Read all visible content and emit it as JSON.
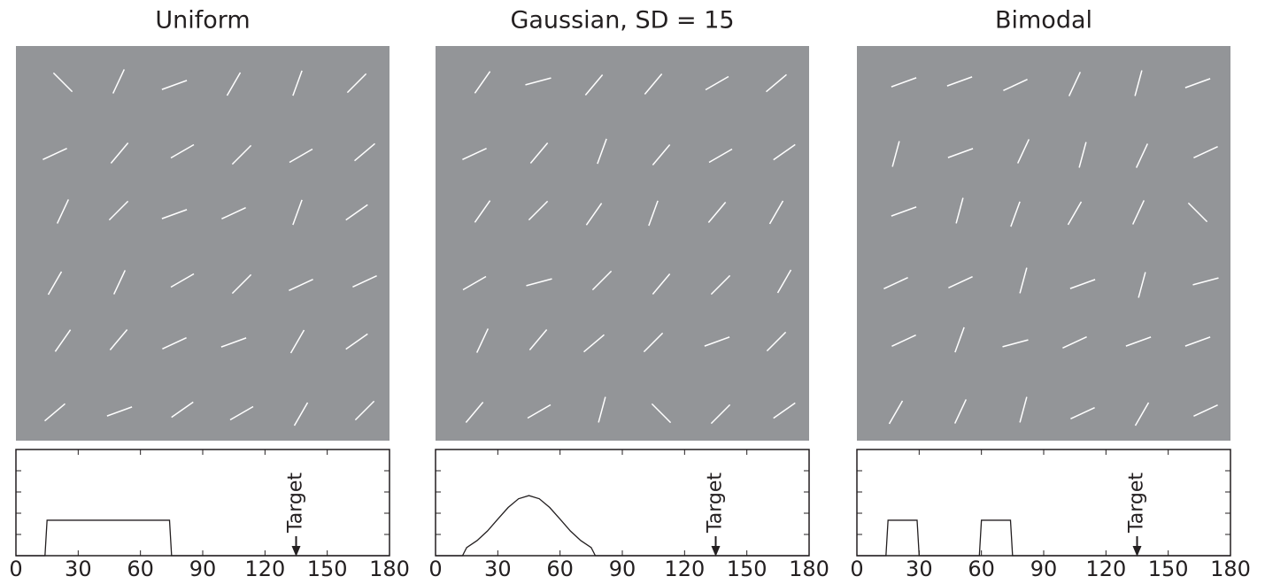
{
  "chart_data": [
    {
      "type": "line",
      "title": "Uniform",
      "background": "#939598",
      "stimulus_color": "#ffffff",
      "color": "#231f20",
      "stimulus_orientations": [
        135,
        65,
        20,
        60,
        70,
        45,
        25,
        50,
        30,
        45,
        30,
        40,
        65,
        45,
        20,
        25,
        70,
        35,
        60,
        65,
        30,
        45,
        25,
        25,
        55,
        50,
        25,
        20,
        60,
        35,
        40,
        20,
        35,
        30,
        60,
        45
      ],
      "x": [
        0,
        14,
        15,
        74,
        75,
        180
      ],
      "values": [
        0,
        0,
        1.67,
        1.67,
        0,
        0
      ],
      "xlim": [
        0,
        180
      ],
      "xticks": [
        0,
        30,
        60,
        90,
        120,
        150,
        180
      ],
      "ylim": [
        0,
        5
      ],
      "yticks": [
        1,
        2,
        3,
        4
      ],
      "annotation": {
        "text": "Target",
        "x": 135
      }
    },
    {
      "type": "line",
      "title": "Gaussian, SD = 15",
      "background": "#939598",
      "stimulus_color": "#ffffff",
      "color": "#231f20",
      "stimulus_orientations": [
        55,
        15,
        50,
        50,
        30,
        40,
        25,
        50,
        70,
        50,
        30,
        35,
        55,
        45,
        55,
        70,
        50,
        60,
        30,
        15,
        45,
        50,
        45,
        60,
        65,
        50,
        40,
        45,
        20,
        45,
        50,
        30,
        75,
        135,
        45,
        35
      ],
      "x": [
        0,
        13,
        15,
        20,
        25,
        30,
        35,
        40,
        45,
        50,
        55,
        60,
        65,
        70,
        75,
        77,
        180
      ],
      "values": [
        0,
        0,
        0.38,
        0.71,
        1.16,
        1.72,
        2.27,
        2.68,
        2.83,
        2.68,
        2.27,
        1.72,
        1.16,
        0.71,
        0.38,
        0,
        0
      ],
      "xlim": [
        0,
        180
      ],
      "xticks": [
        0,
        30,
        60,
        90,
        120,
        150,
        180
      ],
      "ylim": [
        0,
        5
      ],
      "yticks": [
        1,
        2,
        3,
        4
      ],
      "annotation": {
        "text": "Target",
        "x": 135
      }
    },
    {
      "type": "line",
      "title": "Bimodal",
      "background": "#939598",
      "stimulus_color": "#ffffff",
      "color": "#231f20",
      "stimulus_orientations": [
        20,
        20,
        25,
        65,
        75,
        20,
        75,
        20,
        65,
        75,
        65,
        25,
        20,
        75,
        70,
        60,
        65,
        135,
        25,
        25,
        75,
        20,
        75,
        15,
        25,
        70,
        15,
        25,
        20,
        20,
        60,
        65,
        75,
        25,
        60,
        25
      ],
      "x": [
        0,
        14,
        15,
        29,
        30,
        59,
        60,
        74,
        75,
        180
      ],
      "values": [
        0,
        0,
        1.67,
        1.67,
        0,
        0,
        1.67,
        1.67,
        0,
        0
      ],
      "xlim": [
        0,
        180
      ],
      "xticks": [
        0,
        30,
        60,
        90,
        120,
        150,
        180
      ],
      "ylim": [
        0,
        5
      ],
      "yticks": [
        1,
        2,
        3,
        4
      ],
      "annotation": {
        "text": "Target",
        "x": 135
      }
    }
  ]
}
